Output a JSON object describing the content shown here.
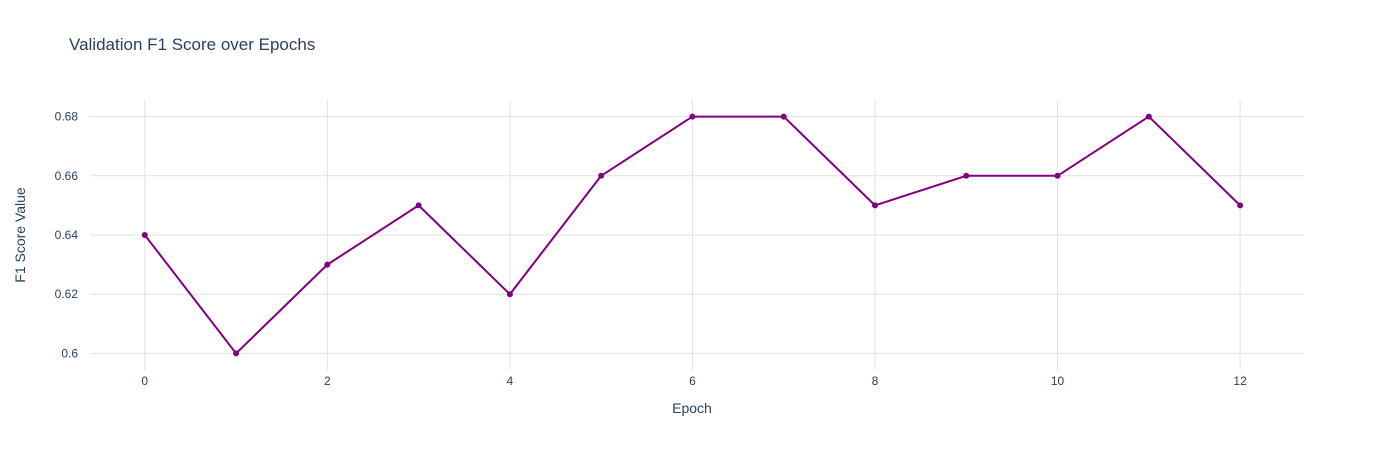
{
  "chart_data": {
    "type": "line",
    "title": "Validation F1 Score over Epochs",
    "xlabel": "Epoch",
    "ylabel": "F1 Score Value",
    "x": [
      0,
      1,
      2,
      3,
      4,
      5,
      6,
      7,
      8,
      9,
      10,
      11,
      12
    ],
    "series": [
      {
        "values": [
          0.64,
          0.6,
          0.63,
          0.65,
          0.62,
          0.66,
          0.68,
          0.68,
          0.65,
          0.66,
          0.66,
          0.68,
          0.65
        ],
        "color": "#800080",
        "mode": "lines+markers"
      }
    ],
    "xlim": [
      -0.6,
      12.7
    ],
    "ylim": [
      0.5944,
      0.6856
    ],
    "xticks": [
      0,
      2,
      4,
      6,
      8,
      10,
      12
    ],
    "xtick_labels": [
      "0",
      "2",
      "4",
      "6",
      "8",
      "10",
      "12"
    ],
    "yticks": [
      0.6,
      0.62,
      0.64,
      0.66,
      0.68
    ],
    "ytick_labels": [
      "0.6",
      "0.62",
      "0.64",
      "0.66",
      "0.68"
    ],
    "grid": true,
    "colors": {
      "line": "#800080",
      "grid": "#e1e1e1",
      "text": "#2a3f5f",
      "background": "#ffffff"
    }
  }
}
